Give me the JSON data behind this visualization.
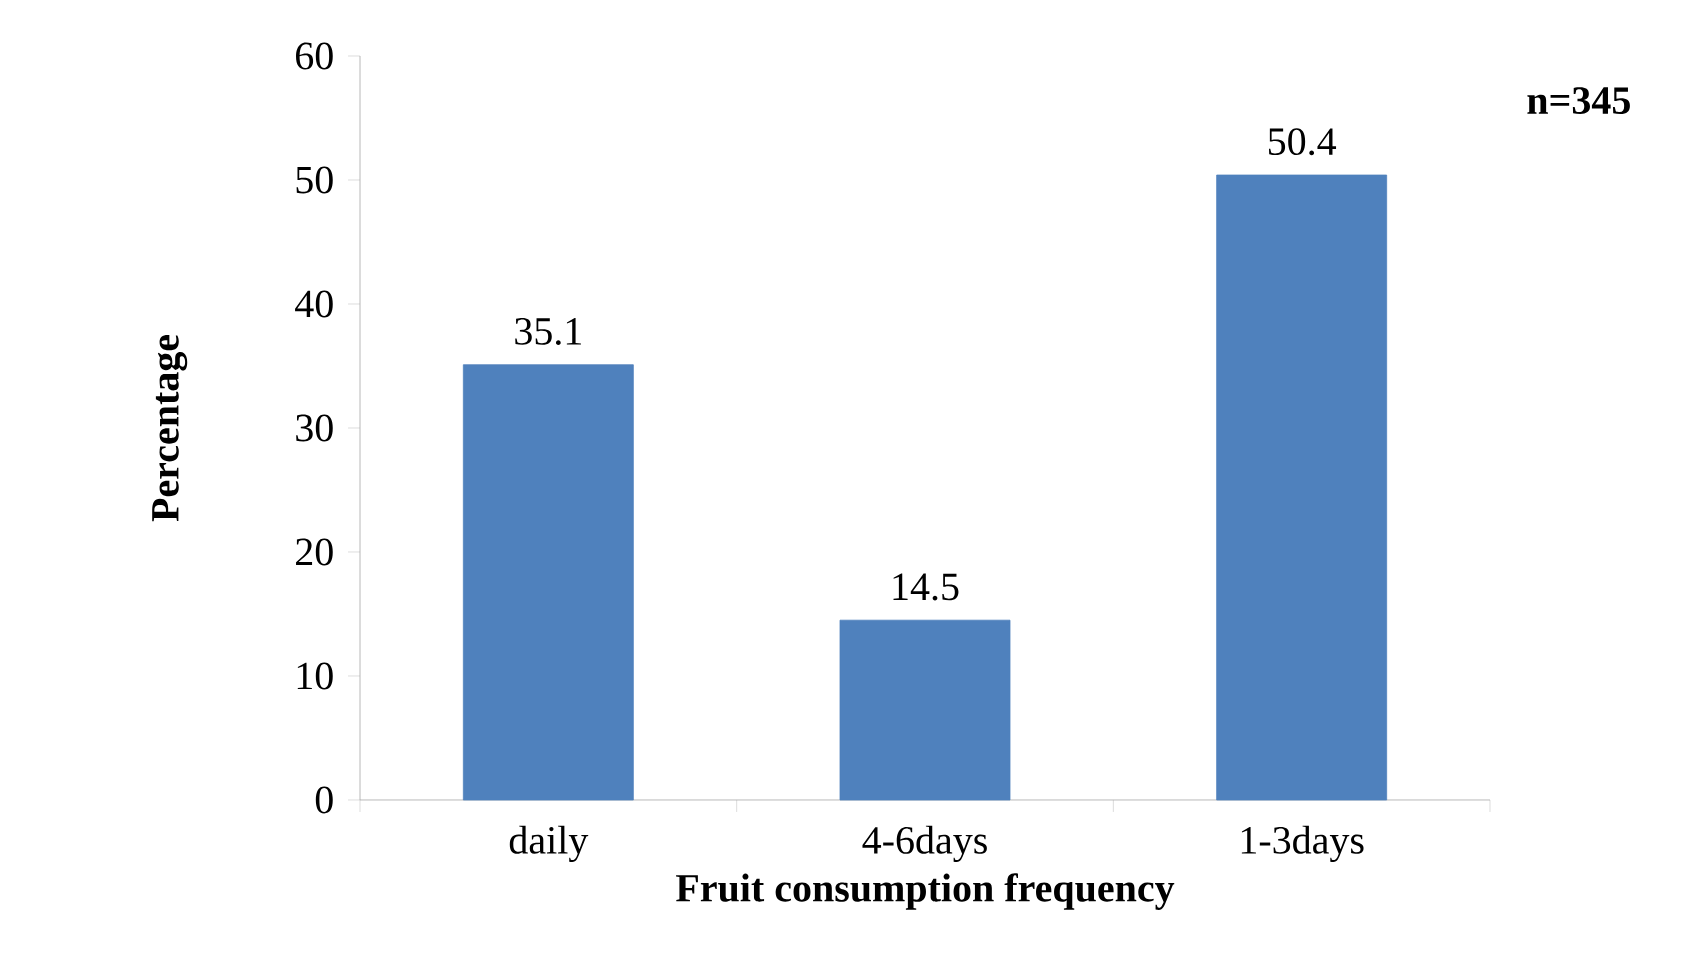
{
  "chart_data": {
    "type": "bar",
    "xlabel": "Fruit consumption frequency",
    "ylabel": "Percentage",
    "categories": [
      "daily",
      "4-6days",
      "1-3days"
    ],
    "values": [
      35.1,
      14.5,
      50.4
    ],
    "color": "#4f81bd",
    "ylim": [
      0,
      60
    ],
    "yticks": [
      0,
      10,
      20,
      30,
      40,
      50,
      60
    ],
    "data_labels": true,
    "grid": false,
    "annotations": [
      "n=345"
    ]
  }
}
